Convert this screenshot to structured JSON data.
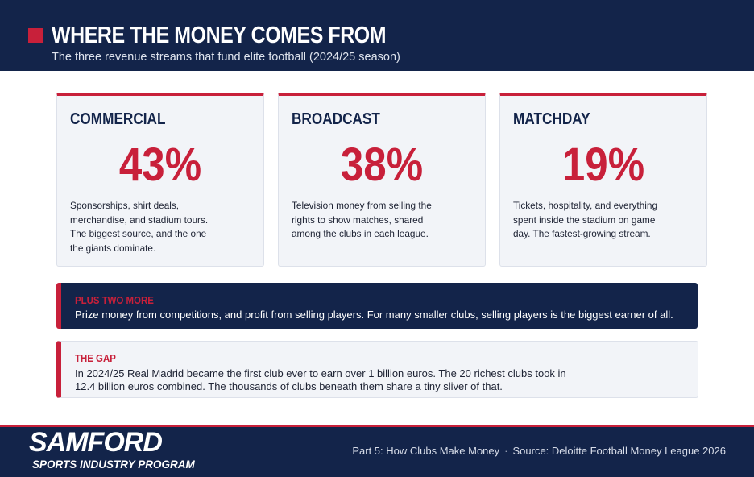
{
  "header": {
    "title": "WHERE THE MONEY COMES FROM",
    "subtitle": "The three revenue streams that fund elite football (2024/25 season)"
  },
  "cards": [
    {
      "title": "COMMERCIAL",
      "value": "43%",
      "text": "Sponsorships, shirt deals, merchandise, and stadium tours. The biggest source, and the one the giants dominate."
    },
    {
      "title": "BROADCAST",
      "value": "38%",
      "text": "Television money from selling the rights to show matches, shared among the clubs in each league."
    },
    {
      "title": "MATCHDAY",
      "value": "19%",
      "text": "Tickets, hospitality, and everything spent inside the stadium on game day. The fastest-growing stream."
    }
  ],
  "notes": [
    {
      "label": "PLUS TWO MORE",
      "text": "Prize money from competitions, and profit from selling players. For many smaller clubs, selling players is the biggest earner of all."
    },
    {
      "label": "THE GAP",
      "text": "In 2024/25 Real Madrid became the first club ever to earn over 1 billion euros. The 20 richest clubs took in 12.4 billion euros combined. The thousands of clubs beneath them share a tiny sliver of that."
    }
  ],
  "footer": {
    "logo": "SAMFORD",
    "logo_subtitle": "SPORTS INDUSTRY PROGRAM",
    "part": "Part 5: How Clubs Make Money",
    "source": "Source: Deloitte Football Money League 2026"
  }
}
